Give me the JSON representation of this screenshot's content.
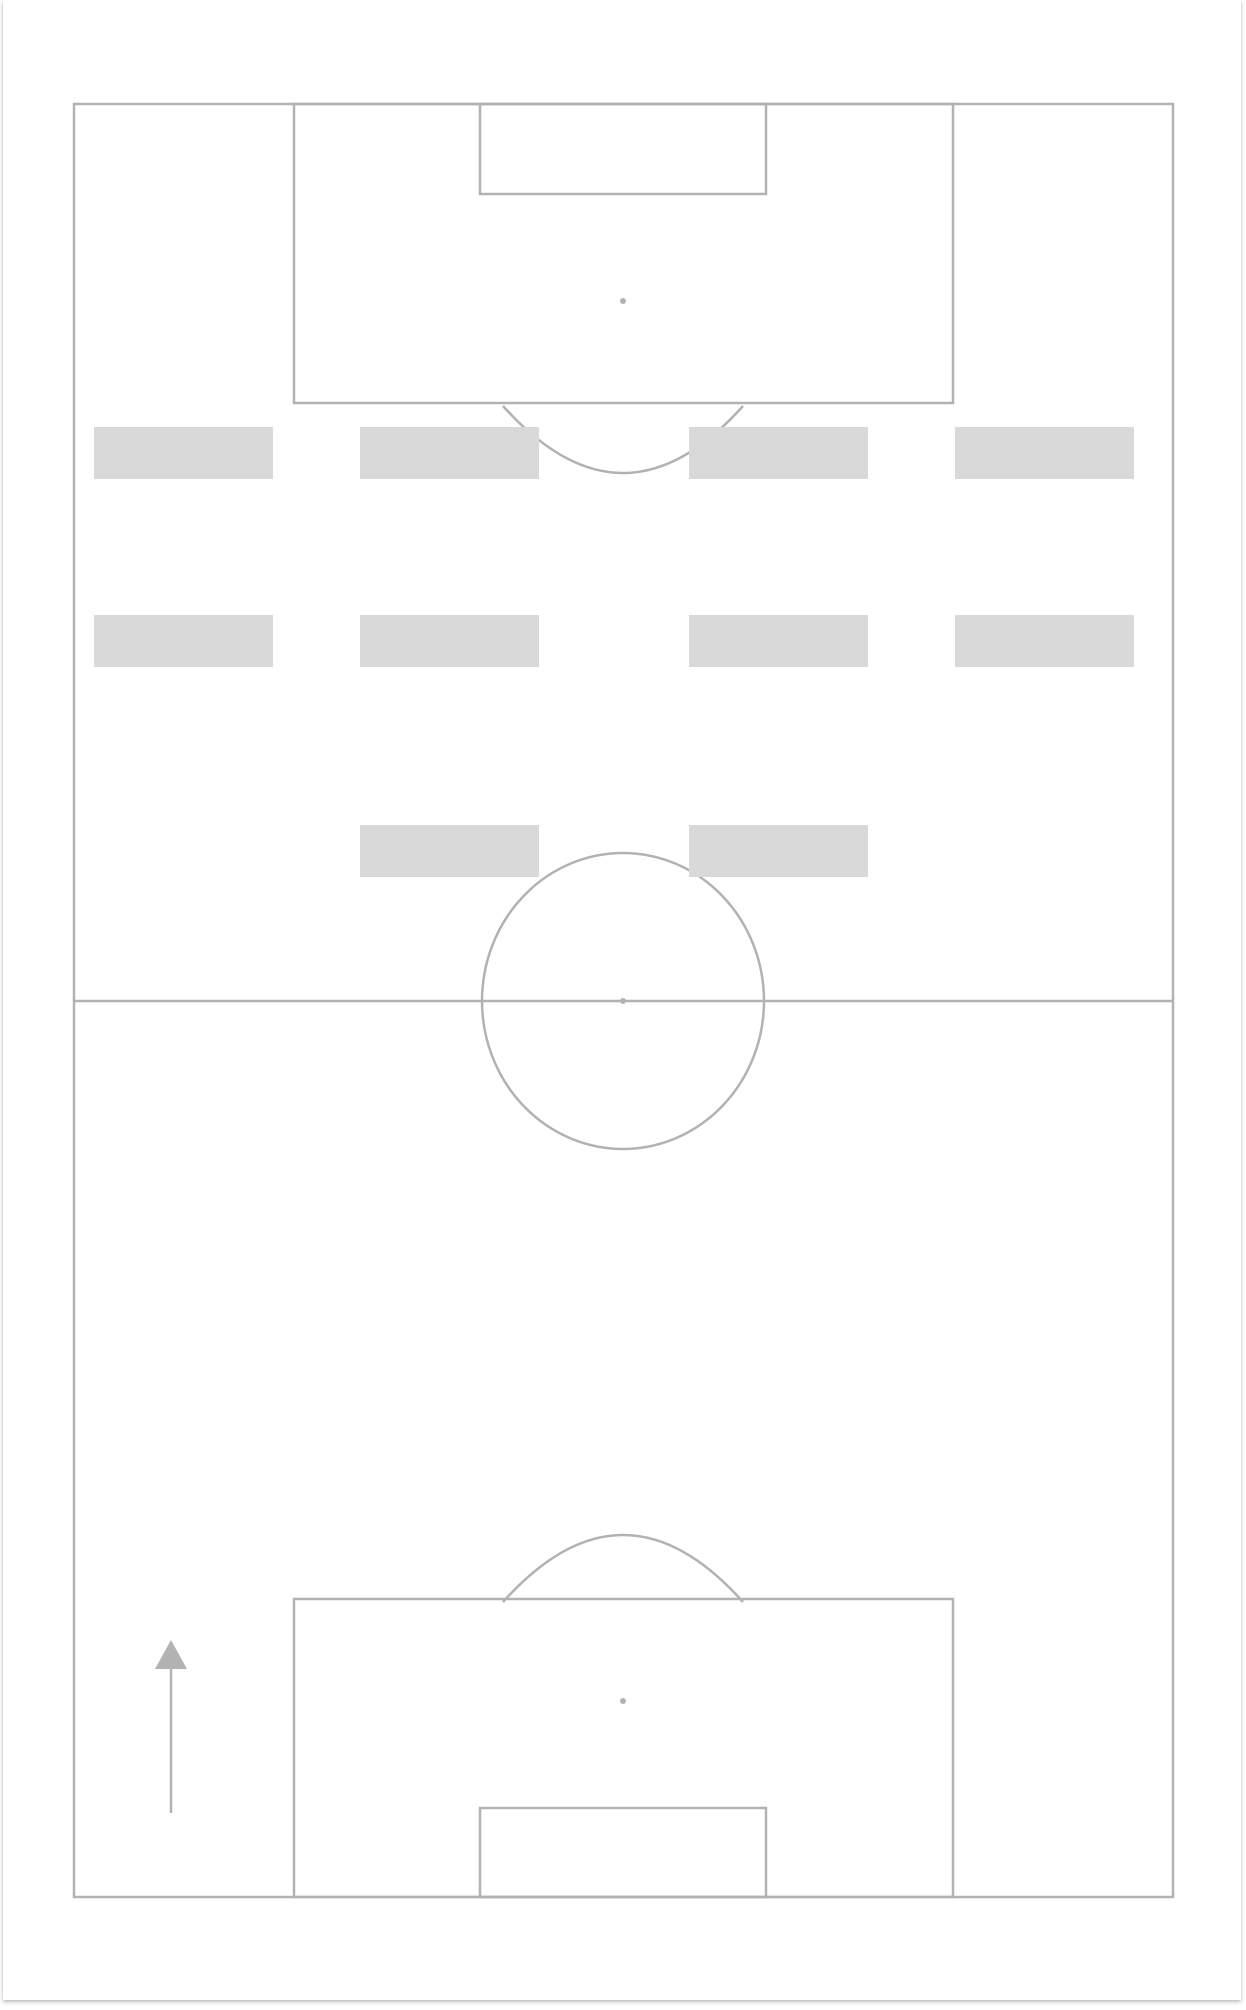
{
  "pitch": {
    "line_color": "#b2b2b2",
    "background": "#ffffff",
    "slot_color": "#d9d9d9",
    "arrow_icon": "up-arrow-icon",
    "direction": "up"
  },
  "formation": {
    "rows": [
      {
        "name": "front-row",
        "slots": [
          "",
          "",
          "",
          ""
        ]
      },
      {
        "name": "second-row",
        "slots": [
          "",
          "",
          "",
          ""
        ]
      },
      {
        "name": "third-row",
        "slots": [
          "",
          ""
        ]
      }
    ]
  }
}
